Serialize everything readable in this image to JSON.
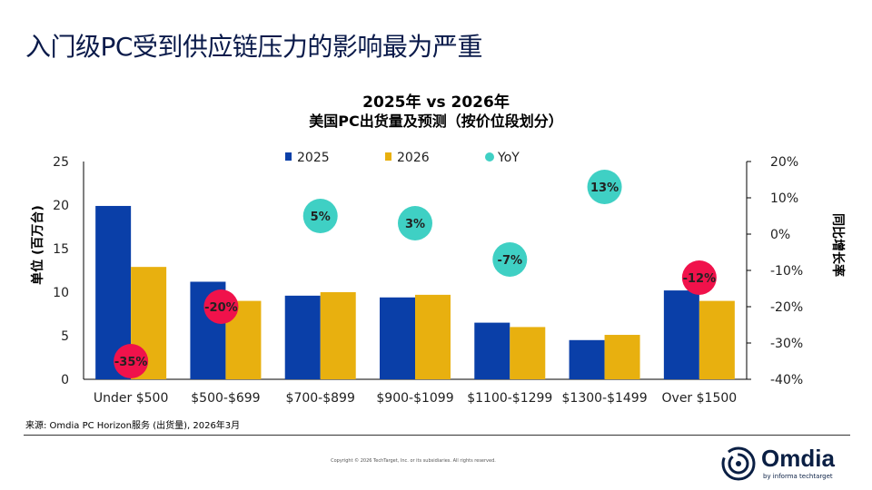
{
  "slide_title": "入门级PC受到供应链压力的影响最为严重",
  "chart_data": {
    "type": "bar",
    "title": "2025年 vs 2026年",
    "subtitle": "美国PC出货量及预测（按价位段划分）",
    "categories": [
      "Under $500",
      "$500-$699",
      "$700-$899",
      "$900-$1099",
      "$1100-$1299",
      "$1300-$1499",
      "Over $1500"
    ],
    "series": [
      {
        "name": "2025",
        "type": "bar",
        "axis": "left",
        "color": "#0a3fa8",
        "values": [
          19.9,
          11.2,
          9.6,
          9.4,
          6.5,
          4.5,
          10.2
        ]
      },
      {
        "name": "2026",
        "type": "bar",
        "axis": "left",
        "color": "#e8b00f",
        "values": [
          12.9,
          9.0,
          10.0,
          9.7,
          6.0,
          5.1,
          9.0
        ]
      },
      {
        "name": "YoY",
        "type": "scatter",
        "axis": "right",
        "color": "#3fd0c4",
        "negative_color": "#f0124b",
        "values": [
          -35,
          -20,
          5,
          3,
          -7,
          13,
          -12
        ],
        "labels": [
          "-35%",
          "-20%",
          "5%",
          "3%",
          "-7%",
          "13%",
          "-12%"
        ]
      }
    ],
    "ylabel": "单位 (百万台)",
    "ylim": [
      0,
      25
    ],
    "yticks": [
      "0",
      "5",
      "10",
      "15",
      "20",
      "25"
    ],
    "y2label": "同比增长率",
    "y2lim": [
      -40,
      20
    ],
    "y2ticks": [
      "-40%",
      "-30%",
      "-20%",
      "-10%",
      "0%",
      "10%",
      "20%"
    ],
    "legend_position": "top",
    "grid": false
  },
  "footer": {
    "source": "来源: Omdia PC Horizon服务 (出货量), 2026年3月",
    "copyright": "Copyright © 2026 TechTarget, Inc. or its subsidiaries. All rights reserved.",
    "logo": "Omdia",
    "logo_sub": "by informa techtarget"
  }
}
